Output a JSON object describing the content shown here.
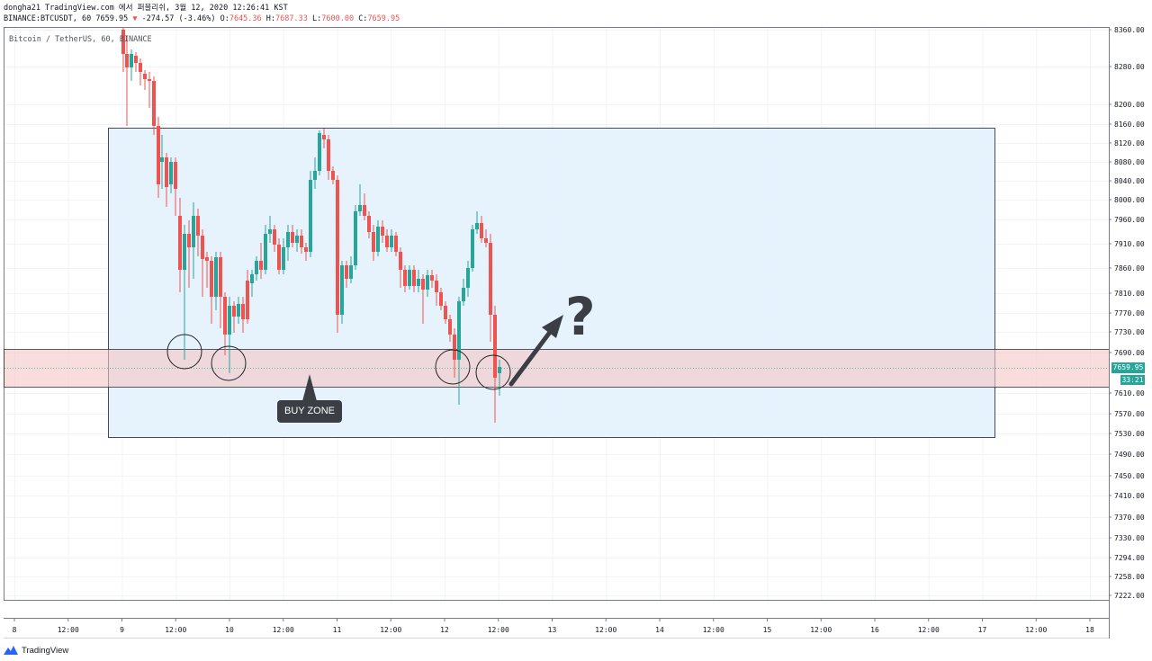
{
  "header": {
    "line1": "dongha21 TradingView.com 에서 퍼블리쉬, 3월 12, 2020 12:26:41 KST",
    "symbol_prefix": "BINANCE:BTCUSDT, 60",
    "last_price": "7659.95",
    "change_arrow": "▼",
    "change": "-274.57 (-3.46%)",
    "open_label": "O:",
    "open": "7645.36",
    "high_label": "H:",
    "high": "7687.33",
    "low_label": "L:",
    "low": "7600.00",
    "close_label": "C:",
    "close": "7659.95"
  },
  "legend": "Bitcoin / TetherUS, 60, BINANCE",
  "price_axis": [
    "8360.00",
    "8280.00",
    "8200.00",
    "8160.00",
    "8120.00",
    "8080.00",
    "8040.00",
    "8000.00",
    "7960.00",
    "7910.00",
    "7860.00",
    "7810.00",
    "7770.00",
    "7730.00",
    "7690.00",
    "7610.00",
    "7570.00",
    "7530.00",
    "7490.00",
    "7450.00",
    "7410.00",
    "7370.00",
    "7330.00",
    "7294.00",
    "7258.00",
    "7222.00"
  ],
  "time_axis": [
    "8",
    "12:00",
    "9",
    "12:00",
    "10",
    "12:00",
    "11",
    "12:00",
    "12",
    "12:00",
    "13",
    "12:00",
    "14",
    "12:00",
    "15",
    "12:00",
    "16",
    "12:00",
    "17",
    "12:00",
    "18"
  ],
  "current_price_badge": "7659.95",
  "countdown_badge": "33:21",
  "annotation": {
    "buy_zone_label": "BUY ZONE",
    "question_mark": "?"
  },
  "footer": {
    "brand": "TradingView"
  },
  "colors": {
    "up": "#26a69a",
    "down": "#ef5350",
    "range_box": "#e3f2fd",
    "buy_zone": "#f8d7da",
    "annotation": "#3b3f45"
  }
}
